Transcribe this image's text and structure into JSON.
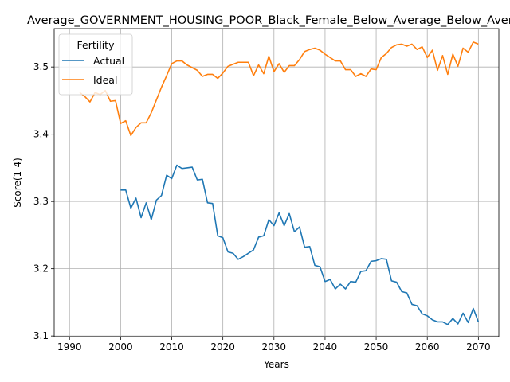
{
  "chart_data": {
    "type": "line",
    "title": "Average_GOVERNMENT_HOUSING_POOR_Black_Female_Below_Average_Below_Average",
    "xlabel": "Years",
    "ylabel": "Score(1-4)",
    "xlim": [
      1987,
      2074
    ],
    "ylim": [
      3.099,
      3.557
    ],
    "x_ticks": [
      1990,
      2000,
      2010,
      2020,
      2030,
      2040,
      2050,
      2060,
      2070
    ],
    "y_ticks": [
      3.1,
      3.2,
      3.3,
      3.4,
      3.5
    ],
    "x_tick_labels": [
      "1990",
      "2000",
      "2010",
      "2020",
      "2030",
      "2040",
      "2050",
      "2060",
      "2070"
    ],
    "y_tick_labels": [
      "3.1",
      "3.2",
      "3.3",
      "3.4",
      "3.5"
    ],
    "grid": true,
    "legend": {
      "title": "Fertility",
      "position": "upper-left"
    },
    "series": [
      {
        "name": "Actual",
        "color": "#1f77b4",
        "x": [
          2000,
          2001,
          2002,
          2003,
          2004,
          2005,
          2006,
          2007,
          2008,
          2009,
          2010,
          2011,
          2012,
          2013,
          2014,
          2015,
          2016,
          2017,
          2018,
          2019,
          2020,
          2021,
          2022,
          2023,
          2024,
          2025,
          2026,
          2027,
          2028,
          2029,
          2030,
          2031,
          2032,
          2033,
          2034,
          2035,
          2036,
          2037,
          2038,
          2039,
          2040,
          2041,
          2042,
          2043,
          2044,
          2045,
          2046,
          2047,
          2048,
          2049,
          2050,
          2051,
          2052,
          2053,
          2054,
          2055,
          2056,
          2057,
          2058,
          2059,
          2060,
          2061,
          2062,
          2063,
          2064,
          2065,
          2066,
          2067,
          2068,
          2069,
          2070
        ],
        "values": [
          3.317,
          3.317,
          3.29,
          3.305,
          3.276,
          3.298,
          3.273,
          3.302,
          3.309,
          3.339,
          3.334,
          3.354,
          3.349,
          3.35,
          3.351,
          3.332,
          3.333,
          3.298,
          3.297,
          3.249,
          3.246,
          3.225,
          3.223,
          3.214,
          3.218,
          3.223,
          3.228,
          3.247,
          3.249,
          3.273,
          3.264,
          3.283,
          3.264,
          3.282,
          3.255,
          3.262,
          3.232,
          3.233,
          3.205,
          3.203,
          3.181,
          3.184,
          3.17,
          3.177,
          3.17,
          3.181,
          3.18,
          3.196,
          3.197,
          3.211,
          3.212,
          3.215,
          3.214,
          3.182,
          3.18,
          3.166,
          3.164,
          3.147,
          3.145,
          3.133,
          3.13,
          3.124,
          3.121,
          3.121,
          3.117,
          3.126,
          3.118,
          3.134,
          3.12,
          3.141,
          3.121
        ]
      },
      {
        "name": "Ideal",
        "color": "#ff7f0e",
        "x": [
          1992,
          1993,
          1994,
          1995,
          1996,
          1997,
          1998,
          1999,
          2000,
          2001,
          2002,
          2003,
          2004,
          2005,
          2006,
          2007,
          2008,
          2009,
          2010,
          2011,
          2012,
          2013,
          2014,
          2015,
          2016,
          2017,
          2018,
          2019,
          2020,
          2021,
          2022,
          2023,
          2024,
          2025,
          2026,
          2027,
          2028,
          2029,
          2030,
          2031,
          2032,
          2033,
          2034,
          2035,
          2036,
          2037,
          2038,
          2039,
          2040,
          2041,
          2042,
          2043,
          2044,
          2045,
          2046,
          2047,
          2048,
          2049,
          2050,
          2051,
          2052,
          2053,
          2054,
          2055,
          2056,
          2057,
          2058,
          2059,
          2060,
          2061,
          2062,
          2063,
          2064,
          2065,
          2066,
          2067,
          2068,
          2069,
          2070
        ],
        "values": [
          3.462,
          3.456,
          3.448,
          3.462,
          3.459,
          3.465,
          3.449,
          3.45,
          3.416,
          3.42,
          3.398,
          3.41,
          3.417,
          3.417,
          3.432,
          3.451,
          3.47,
          3.487,
          3.505,
          3.509,
          3.509,
          3.503,
          3.499,
          3.495,
          3.486,
          3.489,
          3.489,
          3.483,
          3.491,
          3.501,
          3.504,
          3.507,
          3.507,
          3.507,
          3.487,
          3.503,
          3.49,
          3.516,
          3.493,
          3.505,
          3.492,
          3.502,
          3.502,
          3.511,
          3.523,
          3.526,
          3.528,
          3.525,
          3.519,
          3.514,
          3.509,
          3.509,
          3.496,
          3.496,
          3.486,
          3.49,
          3.486,
          3.497,
          3.496,
          3.514,
          3.52,
          3.529,
          3.533,
          3.534,
          3.531,
          3.534,
          3.526,
          3.53,
          3.514,
          3.525,
          3.495,
          3.517,
          3.489,
          3.519,
          3.501,
          3.528,
          3.522,
          3.537,
          3.534
        ]
      }
    ]
  }
}
